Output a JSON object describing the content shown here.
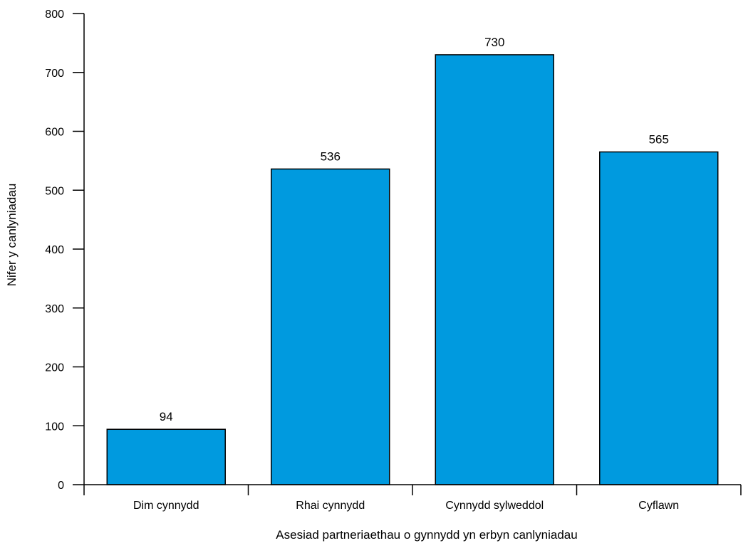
{
  "chart_data": {
    "type": "bar",
    "categories": [
      "Dim cynnydd",
      "Rhai cynnydd",
      "Cynnydd sylweddol",
      "Cyflawn"
    ],
    "values": [
      94,
      536,
      730,
      565
    ],
    "data_labels": [
      "94",
      "536",
      "730",
      "565"
    ],
    "title": "",
    "xlabel": "Asesiad partneriaethau o gynnydd yn erbyn canlyniadau",
    "ylabel": "Nifer y canlyniadau",
    "ylim": [
      0,
      800
    ],
    "yticks": [
      0,
      100,
      200,
      300,
      400,
      500,
      600,
      700,
      800
    ],
    "grid": false,
    "legend": "none",
    "bar_color": "#009ADF",
    "bar_edge_color": "#000000"
  }
}
